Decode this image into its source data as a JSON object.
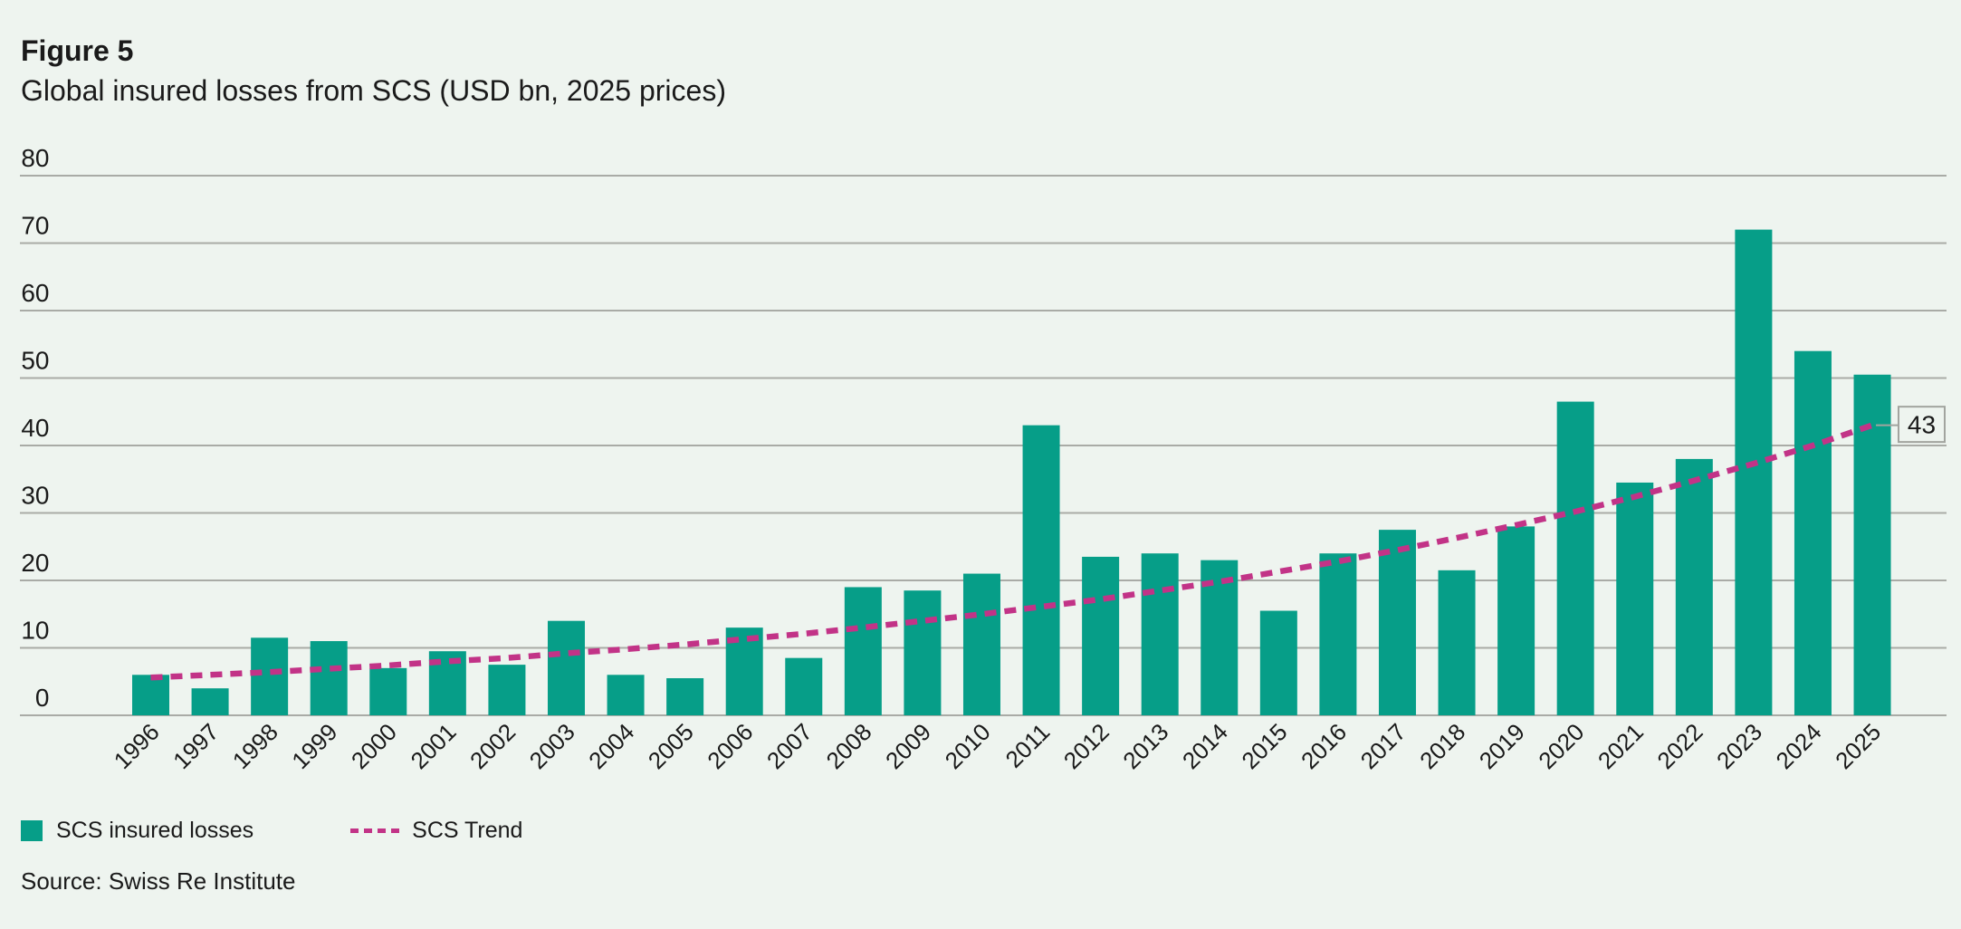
{
  "figure": {
    "label": "Figure 5",
    "title": "Global insured losses from SCS (USD bn, 2025 prices)"
  },
  "legend": {
    "bar_label": "SCS insured losses",
    "trend_label": "SCS Trend"
  },
  "source": "Source: Swiss Re Institute",
  "colors": {
    "background": "#eef4ef",
    "bar": "#069e88",
    "trend": "#c23387",
    "grid": "#a9aba6",
    "text": "#1a1a1a",
    "annotation_border": "#a2a49f"
  },
  "chart_data": {
    "type": "bar",
    "title": "Global insured losses from SCS (USD bn, 2025 prices)",
    "xlabel": "",
    "ylabel": "USD bn (2025 prices)",
    "ylim": [
      0,
      80
    ],
    "ytick_step": 10,
    "grid": true,
    "legend_position": "bottom",
    "categories": [
      "1996",
      "1997",
      "1998",
      "1999",
      "2000",
      "2001",
      "2002",
      "2003",
      "2004",
      "2005",
      "2006",
      "2007",
      "2008",
      "2009",
      "2010",
      "2011",
      "2012",
      "2013",
      "2014",
      "2015",
      "2016",
      "2017",
      "2018",
      "2019",
      "2020",
      "2021",
      "2022",
      "2023",
      "2024",
      "2025"
    ],
    "series": [
      {
        "name": "SCS insured losses",
        "type": "bar",
        "values": [
          6,
          4,
          11.5,
          11,
          7,
          9.5,
          7.5,
          14,
          6,
          5.5,
          13,
          8.5,
          19,
          18.5,
          21,
          43,
          23.5,
          24,
          23,
          15.5,
          24,
          27.5,
          21.5,
          28,
          46.5,
          34.5,
          38,
          72,
          54,
          50.5
        ]
      },
      {
        "name": "SCS Trend",
        "type": "line",
        "style": "dashed",
        "values": [
          5.6,
          6.0,
          6.4,
          6.9,
          7.4,
          8.0,
          8.5,
          9.2,
          9.8,
          10.5,
          11.3,
          12.1,
          13.0,
          14.0,
          15.0,
          16.1,
          17.2,
          18.5,
          19.8,
          21.3,
          22.8,
          24.5,
          26.3,
          28.2,
          30.2,
          32.4,
          34.8,
          37.3,
          40.0,
          43.0
        ]
      }
    ],
    "annotation": {
      "label": "43",
      "series": "SCS Trend",
      "at_category": "2025"
    },
    "yticks": [
      "0",
      "10",
      "20",
      "30",
      "40",
      "50",
      "60",
      "70",
      "80"
    ]
  }
}
